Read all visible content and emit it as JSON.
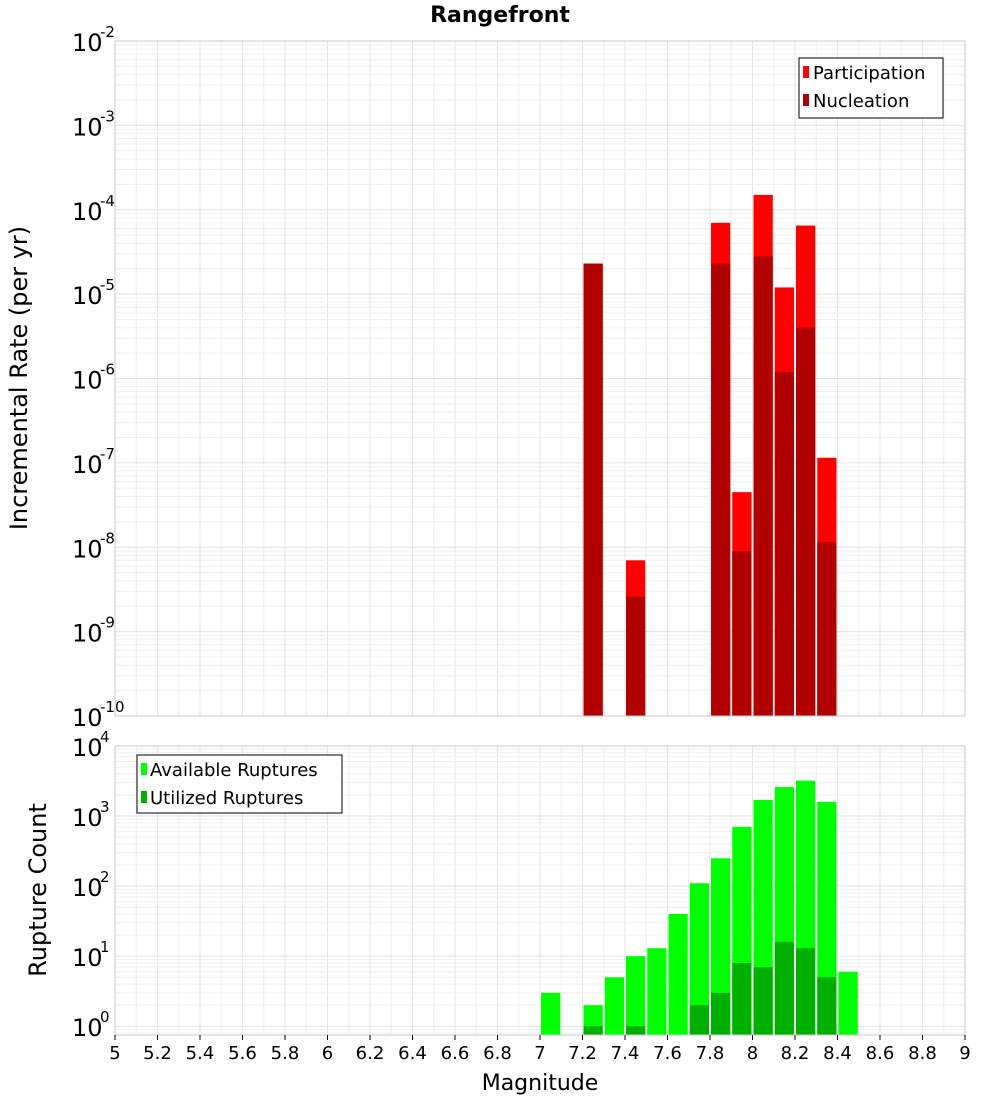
{
  "chart_data": [
    {
      "type": "bar",
      "title": "Rangefront",
      "ylabel": "Incremental Rate (per yr)",
      "xlabel": "",
      "yscale": "log",
      "ylim": [
        1e-10,
        0.01
      ],
      "xlim": [
        5,
        9
      ],
      "ytick_labels": [
        "10",
        "10",
        "10",
        "10",
        "10",
        "10",
        "10",
        "10",
        "10"
      ],
      "ytick_exponents": [
        "-10",
        "-9",
        "-8",
        "-7",
        "-6",
        "-5",
        "-4",
        "-3",
        "-2"
      ],
      "legend_position": "top-right",
      "x": [
        7.25,
        7.45,
        7.85,
        7.95,
        8.05,
        8.15,
        8.25,
        8.35
      ],
      "series": [
        {
          "name": "Participation",
          "color": "#ff0000",
          "values": [
            2.3e-05,
            7e-09,
            7e-05,
            4.5e-08,
            0.00015,
            1.2e-05,
            6.5e-05,
            1.15e-07
          ]
        },
        {
          "name": "Nucleation",
          "color": "#b00000",
          "values": [
            2.3e-05,
            2.6e-09,
            2.3e-05,
            9e-09,
            2.8e-05,
            1.2e-06,
            4e-06,
            1.15e-08
          ]
        }
      ]
    },
    {
      "type": "bar",
      "title": "",
      "ylabel": "Rupture Count",
      "xlabel": "Magnitude",
      "yscale": "log",
      "ylim": [
        0.75,
        10000
      ],
      "xlim": [
        5,
        9
      ],
      "ytick_labels": [
        "10",
        "10",
        "10",
        "10",
        "10"
      ],
      "ytick_exponents": [
        "0",
        "1",
        "2",
        "3",
        "4"
      ],
      "xtick_labels": [
        "5",
        "5.2",
        "5.4",
        "5.6",
        "5.8",
        "6",
        "6.2",
        "6.4",
        "6.6",
        "6.8",
        "7",
        "7.2",
        "7.4",
        "7.6",
        "7.8",
        "8",
        "8.2",
        "8.4",
        "8.6",
        "8.8",
        "9"
      ],
      "legend_position": "top-left",
      "x": [
        7.05,
        7.15,
        7.25,
        7.35,
        7.45,
        7.55,
        7.65,
        7.75,
        7.85,
        7.95,
        8.05,
        8.15,
        8.25,
        8.35,
        8.45
      ],
      "series": [
        {
          "name": "Available Ruptures",
          "color": "#00ff00",
          "values": [
            3,
            0,
            2,
            5,
            10,
            13,
            40,
            110,
            250,
            700,
            1700,
            2600,
            3200,
            1600,
            6
          ]
        },
        {
          "name": "Utilized Ruptures",
          "color": "#00b000",
          "values": [
            0,
            0,
            1,
            0,
            1,
            0,
            0,
            2,
            3,
            8,
            7,
            16,
            13,
            5,
            0
          ]
        }
      ]
    }
  ]
}
